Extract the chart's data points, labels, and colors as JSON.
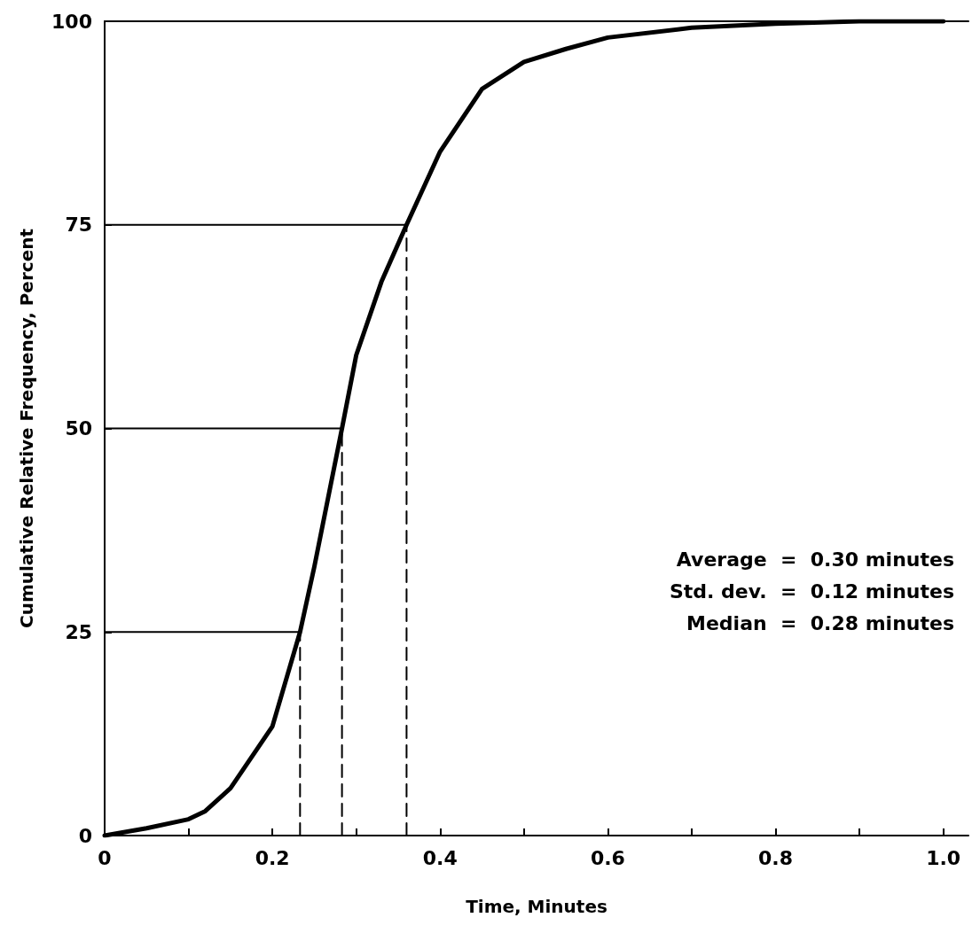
{
  "chart_data": {
    "type": "line",
    "xlabel": "Time, Minutes",
    "ylabel": "Cumulative Relative Frequency, Percent",
    "xlim": [
      0,
      1.03
    ],
    "ylim": [
      0,
      100
    ],
    "xticks": [
      0,
      {
        "value": 0.1,
        "label": null
      },
      0.2,
      {
        "value": 0.3,
        "label": null
      },
      0.4,
      {
        "value": 0.5,
        "label": null
      },
      0.6,
      {
        "value": 0.7,
        "label": null
      },
      0.8,
      {
        "value": 0.9,
        "label": null
      },
      {
        "value": 1.0,
        "label": "1.0"
      }
    ],
    "yticks": [
      0,
      25,
      50,
      75,
      100
    ],
    "grid": false,
    "marker": "none",
    "annotations": [
      "Average  =  0.30 minutes",
      "Std. dev.  =  0.12 minutes",
      "Median  =  0.28 minutes"
    ],
    "series": [
      {
        "color": "#000000",
        "line_style": "solid",
        "x": [
          0,
          0.05,
          0.1,
          0.12,
          0.15,
          0.2,
          0.233,
          0.25,
          0.283,
          0.3,
          0.33,
          0.36,
          0.4,
          0.45,
          0.5,
          0.55,
          0.6,
          0.7,
          0.8,
          0.9,
          1.0
        ],
        "values": [
          0,
          0.9,
          2,
          3,
          5.8,
          13.4,
          25,
          33,
          50,
          59,
          68,
          75,
          84,
          91.7,
          95,
          96.6,
          98,
          99.2,
          99.7,
          100,
          100
        ]
      },
      {
        "type": "line",
        "color": "#000000",
        "line_style": "solid",
        "x": [
          0,
          0.233
        ],
        "values": [
          25,
          25
        ]
      },
      {
        "type": "line",
        "color": "#000000",
        "line_style": "solid",
        "x": [
          0,
          0.283
        ],
        "values": [
          50,
          50
        ]
      },
      {
        "type": "line",
        "color": "#000000",
        "line_style": "solid",
        "x": [
          0,
          0.36
        ],
        "values": [
          75,
          75
        ]
      },
      {
        "type": "line",
        "color": "#000000",
        "line_style": "solid",
        "x": [
          0,
          1.03
        ],
        "values": [
          100,
          100
        ]
      },
      {
        "type": "line",
        "color": "#000000",
        "line_style": "dashed",
        "x": [
          0.233,
          0.233
        ],
        "values": [
          0,
          25
        ]
      },
      {
        "type": "line",
        "color": "#000000",
        "line_style": "dashed",
        "x": [
          0.283,
          0.283
        ],
        "values": [
          0,
          50
        ]
      },
      {
        "type": "line",
        "color": "#000000",
        "line_style": "dashed",
        "x": [
          0.36,
          0.36
        ],
        "values": [
          0,
          75
        ]
      }
    ]
  }
}
